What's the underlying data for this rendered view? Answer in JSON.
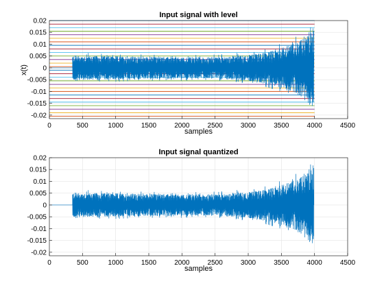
{
  "chart_data": [
    {
      "type": "line",
      "title": "Input signal with level",
      "xlabel": "samples",
      "ylabel": "x(t)",
      "xlim": [
        0,
        4500
      ],
      "ylim": [
        -0.0215,
        0.02
      ],
      "xticks": [
        0,
        500,
        1000,
        1500,
        2000,
        2500,
        3000,
        3500,
        4000,
        4500
      ],
      "xtick_labels": [
        "0",
        "500",
        "1000",
        "1500",
        "2000",
        "2500",
        "3000",
        "3500",
        "4000",
        "4500"
      ],
      "yticks": [
        -0.02,
        -0.015,
        -0.01,
        -0.005,
        0,
        0.005,
        0.01,
        0.015,
        0.02
      ],
      "ytick_labels": [
        "-0.02",
        "-0.015",
        "-0.01",
        "-0.005",
        "0",
        "0.005",
        "0.01",
        "0.015",
        "0.02"
      ],
      "grid": true,
      "signal": {
        "color": "#0072bd",
        "x_start": 0,
        "x_end": 3990,
        "silence_until": 350,
        "amplitude_envelope": [
          [
            350,
            0.0062
          ],
          [
            1000,
            0.0058
          ],
          [
            2000,
            0.0052
          ],
          [
            2500,
            0.0054
          ],
          [
            3000,
            0.0064
          ],
          [
            3300,
            0.008
          ],
          [
            3600,
            0.011
          ],
          [
            3800,
            0.0145
          ],
          [
            3990,
            0.0205
          ]
        ]
      },
      "levels": {
        "x_end": 4000,
        "values": [
          -0.0205,
          -0.019,
          -0.0175,
          -0.016,
          -0.0145,
          -0.013,
          -0.0115,
          -0.01,
          -0.0085,
          -0.007,
          -0.0055,
          -0.004,
          -0.0025,
          -0.001,
          0.0005,
          0.002,
          0.0035,
          0.005,
          0.0065,
          0.008,
          0.0095,
          0.011,
          0.0125,
          0.014,
          0.0155,
          0.017,
          0.0185,
          0.02
        ],
        "colors": [
          "#d95319",
          "#edb120",
          "#7e2f8e",
          "#77ac30",
          "#4dbeee",
          "#a2142f",
          "#0072bd"
        ]
      }
    },
    {
      "type": "line",
      "title": "Input signal quantized",
      "xlabel": "samples",
      "ylabel": "",
      "xlim": [
        0,
        4500
      ],
      "ylim": [
        -0.0215,
        0.02
      ],
      "xticks": [
        0,
        500,
        1000,
        1500,
        2000,
        2500,
        3000,
        3500,
        4000,
        4500
      ],
      "xtick_labels": [
        "0",
        "500",
        "1000",
        "1500",
        "2000",
        "2500",
        "3000",
        "3500",
        "4000",
        "4500"
      ],
      "yticks": [
        -0.02,
        -0.015,
        -0.01,
        -0.005,
        0,
        0.005,
        0.01,
        0.015,
        0.02
      ],
      "ytick_labels": [
        "-0.02",
        "-0.015",
        "-0.01",
        "-0.005",
        "0",
        "0.005",
        "0.01",
        "0.015",
        "0.02"
      ],
      "grid": true,
      "signal": {
        "color": "#0072bd",
        "x_start": 0,
        "x_end": 3990,
        "silence_until": 350,
        "amplitude_envelope": [
          [
            350,
            0.0062
          ],
          [
            1000,
            0.0058
          ],
          [
            2000,
            0.0052
          ],
          [
            2500,
            0.0054
          ],
          [
            3000,
            0.0064
          ],
          [
            3300,
            0.008
          ],
          [
            3600,
            0.011
          ],
          [
            3800,
            0.0145
          ],
          [
            3990,
            0.0205
          ]
        ]
      },
      "levels": null
    }
  ]
}
